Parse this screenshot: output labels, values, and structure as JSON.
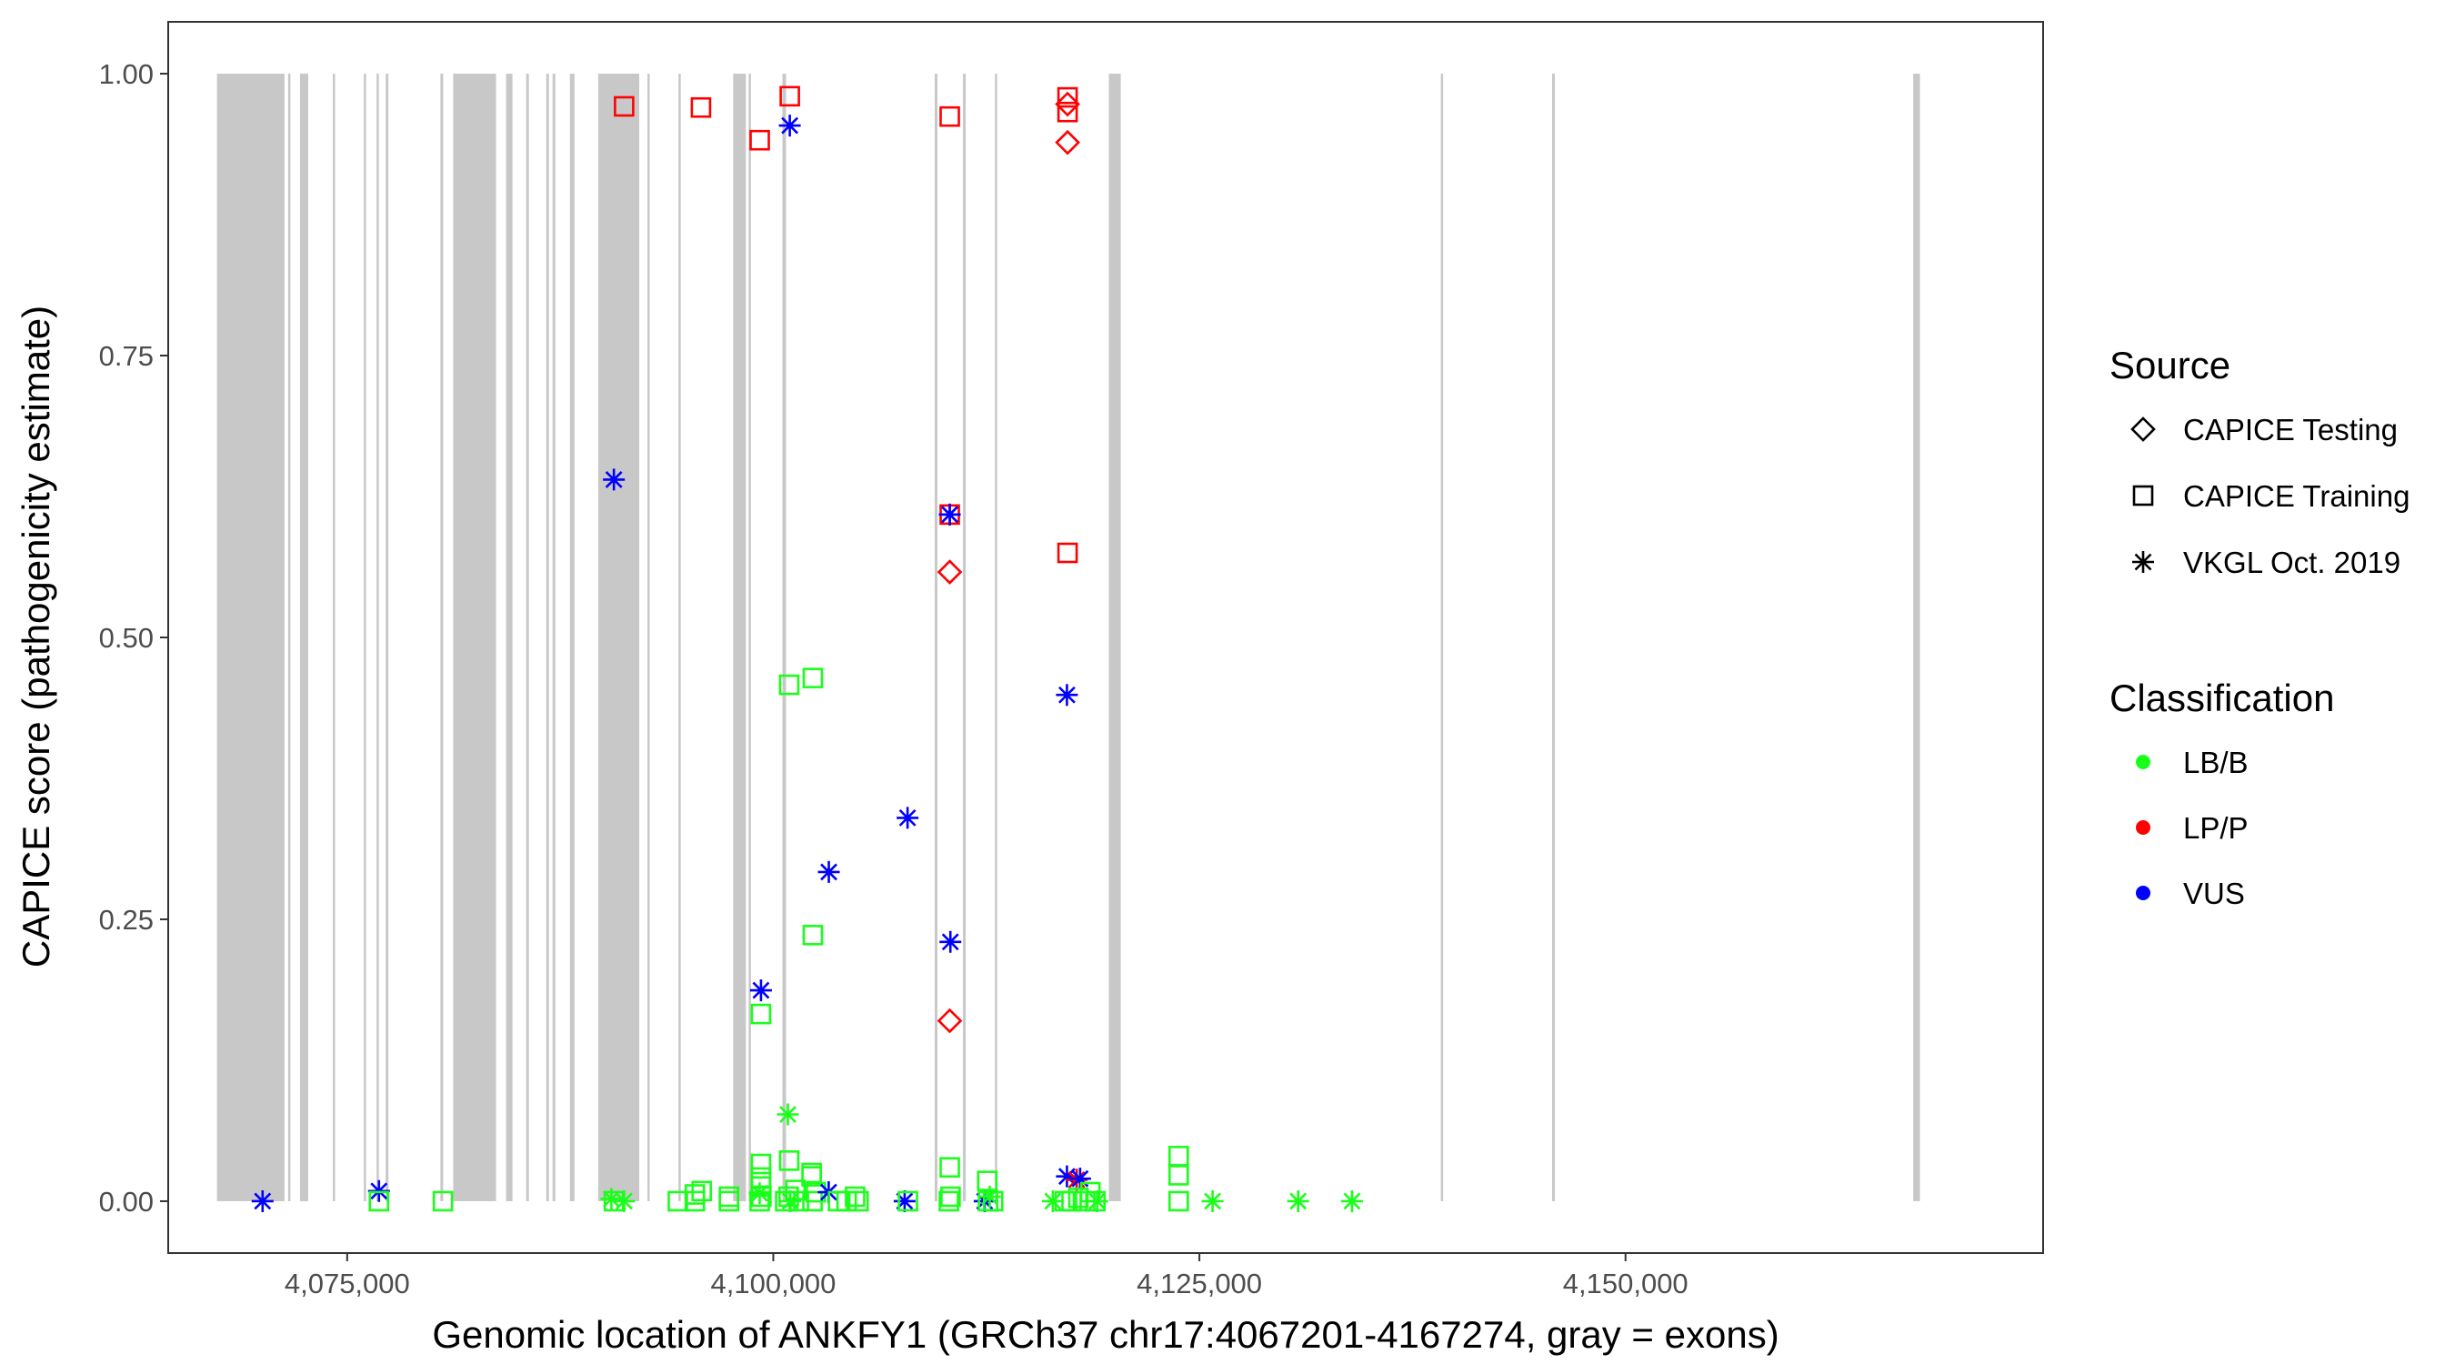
{
  "chart_data": {
    "type": "scatter",
    "xlabel": "Genomic location of ANKFY1 (GRCh37 chr17:4067201-4167274, gray = exons)",
    "ylabel": "CAPICE score (pathogenicity estimate)",
    "xlim": [
      4064500,
      4174500
    ],
    "ylim": [
      -0.046,
      1.046
    ],
    "x_ticks": [
      4075000,
      4100000,
      4125000,
      4150000
    ],
    "x_tick_labels": [
      "4,075,000",
      "4,100,000",
      "4,125,000",
      "4,150,000"
    ],
    "y_ticks": [
      0,
      0.25,
      0.5,
      0.75,
      1.0
    ],
    "y_tick_labels": [
      "0.00",
      "0.25",
      "0.50",
      "0.75",
      "1.00"
    ],
    "grid": false,
    "legend_placement": "right",
    "legend": {
      "source_title": "Source",
      "sources": [
        {
          "key": "testing",
          "label": "CAPICE Testing",
          "shape": "diamond"
        },
        {
          "key": "training",
          "label": "CAPICE Training",
          "shape": "square"
        },
        {
          "key": "vkgl",
          "label": "VKGL Oct. 2019",
          "shape": "asterisk"
        }
      ],
      "class_title": "Classification",
      "classes": [
        {
          "key": "LB/B",
          "label": "LB/B",
          "color": "#1aff1a"
        },
        {
          "key": "LP/P",
          "label": "LP/P",
          "color": "#ff0000"
        },
        {
          "key": "VUS",
          "label": "VUS",
          "color": "#0000ff"
        }
      ]
    },
    "exon_color": "#c8c8c8",
    "exons": [
      [
        4067363,
        4071322
      ],
      [
        4071536,
        4071590
      ],
      [
        4072232,
        4072713
      ],
      [
        4074157,
        4074264
      ],
      [
        4075976,
        4076083
      ],
      [
        4076725,
        4076832
      ],
      [
        4077260,
        4077421
      ],
      [
        4080471,
        4080632
      ],
      [
        4081220,
        4083735
      ],
      [
        4084323,
        4084698
      ],
      [
        4085500,
        4085661
      ],
      [
        4086677,
        4086838
      ],
      [
        4087052,
        4087212
      ],
      [
        4088068,
        4088336
      ],
      [
        4089727,
        4092135
      ],
      [
        4092616,
        4092723
      ],
      [
        4094436,
        4094543
      ],
      [
        4097646,
        4098395
      ],
      [
        4098555,
        4098662
      ],
      [
        4100535,
        4100749
      ],
      [
        4109470,
        4109631
      ],
      [
        4111129,
        4111289
      ],
      [
        4113001,
        4113108
      ],
      [
        4119690,
        4120385
      ],
      [
        4139165,
        4139272
      ],
      [
        4145693,
        4145853
      ],
      [
        4166880,
        4167274
      ]
    ],
    "points": [
      {
        "x": 4070037,
        "y": 0.0,
        "class": "VUS",
        "source": "vkgl"
      },
      {
        "x": 4076865,
        "y": 0.009,
        "class": "VUS",
        "source": "vkgl"
      },
      {
        "x": 4076865,
        "y": 0.0,
        "class": "LB/B",
        "source": "training"
      },
      {
        "x": 4080620,
        "y": 0.0,
        "class": "LB/B",
        "source": "training"
      },
      {
        "x": 4091247,
        "y": 0.971,
        "class": "LP/P",
        "source": "training"
      },
      {
        "x": 4095757,
        "y": 0.97,
        "class": "LP/P",
        "source": "training"
      },
      {
        "x": 4099203,
        "y": 0.941,
        "class": "LP/P",
        "source": "training"
      },
      {
        "x": 4100968,
        "y": 0.98,
        "class": "LP/P",
        "source": "training"
      },
      {
        "x": 4100968,
        "y": 0.954,
        "class": "VUS",
        "source": "vkgl"
      },
      {
        "x": 4110353,
        "y": 0.962,
        "class": "LP/P",
        "source": "training"
      },
      {
        "x": 4117265,
        "y": 0.979,
        "class": "LP/P",
        "source": "training"
      },
      {
        "x": 4117265,
        "y": 0.966,
        "class": "LP/P",
        "source": "training"
      },
      {
        "x": 4117265,
        "y": 0.973,
        "class": "LP/P",
        "source": "testing"
      },
      {
        "x": 4117265,
        "y": 0.939,
        "class": "LP/P",
        "source": "testing"
      },
      {
        "x": 4090648,
        "y": 0.64,
        "class": "VUS",
        "source": "vkgl"
      },
      {
        "x": 4110353,
        "y": 0.609,
        "class": "LP/P",
        "source": "training"
      },
      {
        "x": 4110353,
        "y": 0.609,
        "class": "LP/P",
        "source": "vkgl"
      },
      {
        "x": 4110353,
        "y": 0.609,
        "class": "VUS",
        "source": "vkgl"
      },
      {
        "x": 4110353,
        "y": 0.558,
        "class": "LP/P",
        "source": "testing"
      },
      {
        "x": 4117265,
        "y": 0.575,
        "class": "LP/P",
        "source": "training"
      },
      {
        "x": 4100930,
        "y": 0.458,
        "class": "LB/B",
        "source": "training"
      },
      {
        "x": 4102322,
        "y": 0.464,
        "class": "LB/B",
        "source": "training"
      },
      {
        "x": 4117228,
        "y": 0.449,
        "class": "VUS",
        "source": "vkgl"
      },
      {
        "x": 4107877,
        "y": 0.34,
        "class": "VUS",
        "source": "vkgl"
      },
      {
        "x": 4103258,
        "y": 0.292,
        "class": "VUS",
        "source": "vkgl"
      },
      {
        "x": 4102322,
        "y": 0.236,
        "class": "LB/B",
        "source": "training"
      },
      {
        "x": 4110390,
        "y": 0.23,
        "class": "VUS",
        "source": "vkgl"
      },
      {
        "x": 4110353,
        "y": 0.16,
        "class": "LP/P",
        "source": "testing"
      },
      {
        "x": 4099278,
        "y": 0.187,
        "class": "VUS",
        "source": "vkgl"
      },
      {
        "x": 4099278,
        "y": 0.166,
        "class": "LB/B",
        "source": "training"
      },
      {
        "x": 4100856,
        "y": 0.077,
        "class": "LB/B",
        "source": "vkgl"
      },
      {
        "x": 4099278,
        "y": 0.033,
        "class": "LB/B",
        "source": "training"
      },
      {
        "x": 4099278,
        "y": 0.021,
        "class": "LB/B",
        "source": "training"
      },
      {
        "x": 4099278,
        "y": 0.013,
        "class": "LB/B",
        "source": "training"
      },
      {
        "x": 4100930,
        "y": 0.036,
        "class": "LB/B",
        "source": "training"
      },
      {
        "x": 4102250,
        "y": 0.025,
        "class": "LB/B",
        "source": "training"
      },
      {
        "x": 4102250,
        "y": 0.022,
        "class": "LB/B",
        "source": "training"
      },
      {
        "x": 4110353,
        "y": 0.03,
        "class": "LB/B",
        "source": "training"
      },
      {
        "x": 4112555,
        "y": 0.018,
        "class": "LB/B",
        "source": "training"
      },
      {
        "x": 4117228,
        "y": 0.022,
        "class": "VUS",
        "source": "vkgl"
      },
      {
        "x": 4117800,
        "y": 0.019,
        "class": "LP/P",
        "source": "vkgl"
      },
      {
        "x": 4118000,
        "y": 0.02,
        "class": "VUS",
        "source": "vkgl"
      },
      {
        "x": 4123782,
        "y": 0.04,
        "class": "LB/B",
        "source": "training"
      },
      {
        "x": 4123782,
        "y": 0.023,
        "class": "LB/B",
        "source": "training"
      },
      {
        "x": 4123782,
        "y": 0.0,
        "class": "LB/B",
        "source": "training"
      },
      {
        "x": 4090500,
        "y": 0.002,
        "class": "LB/B",
        "source": "vkgl"
      },
      {
        "x": 4091250,
        "y": 0.0,
        "class": "LB/B",
        "source": "vkgl"
      },
      {
        "x": 4090650,
        "y": 0.0,
        "class": "LB/B",
        "source": "training"
      },
      {
        "x": 4094400,
        "y": 0.0,
        "class": "LB/B",
        "source": "training"
      },
      {
        "x": 4095400,
        "y": 0.006,
        "class": "LB/B",
        "source": "training"
      },
      {
        "x": 4095800,
        "y": 0.009,
        "class": "LB/B",
        "source": "training"
      },
      {
        "x": 4095400,
        "y": 0.0,
        "class": "LB/B",
        "source": "training"
      },
      {
        "x": 4097400,
        "y": 0.0,
        "class": "LB/B",
        "source": "training"
      },
      {
        "x": 4097400,
        "y": 0.004,
        "class": "LB/B",
        "source": "training"
      },
      {
        "x": 4099200,
        "y": 0.0,
        "class": "LB/B",
        "source": "training"
      },
      {
        "x": 4099300,
        "y": 0.004,
        "class": "LB/B",
        "source": "training"
      },
      {
        "x": 4099200,
        "y": 0.007,
        "class": "LB/B",
        "source": "vkgl"
      },
      {
        "x": 4100700,
        "y": 0.0,
        "class": "LB/B",
        "source": "training"
      },
      {
        "x": 4100900,
        "y": 0.004,
        "class": "LB/B",
        "source": "training"
      },
      {
        "x": 4101000,
        "y": 0.0,
        "class": "LB/B",
        "source": "vkgl"
      },
      {
        "x": 4101300,
        "y": 0.01,
        "class": "LB/B",
        "source": "training"
      },
      {
        "x": 4101500,
        "y": 0.0,
        "class": "LB/B",
        "source": "training"
      },
      {
        "x": 4102300,
        "y": 0.0,
        "class": "LB/B",
        "source": "training"
      },
      {
        "x": 4102500,
        "y": 0.008,
        "class": "LB/B",
        "source": "training"
      },
      {
        "x": 4103250,
        "y": 0.008,
        "class": "VUS",
        "source": "vkgl"
      },
      {
        "x": 4103800,
        "y": 0.0,
        "class": "LB/B",
        "source": "training"
      },
      {
        "x": 4104300,
        "y": 0.0,
        "class": "LB/B",
        "source": "training"
      },
      {
        "x": 4104800,
        "y": 0.004,
        "class": "LB/B",
        "source": "training"
      },
      {
        "x": 4105000,
        "y": 0.0,
        "class": "LB/B",
        "source": "training"
      },
      {
        "x": 4107705,
        "y": 0.0,
        "class": "VUS",
        "source": "vkgl"
      },
      {
        "x": 4107900,
        "y": 0.0,
        "class": "LB/B",
        "source": "training"
      },
      {
        "x": 4110300,
        "y": 0.0,
        "class": "LB/B",
        "source": "training"
      },
      {
        "x": 4110400,
        "y": 0.004,
        "class": "LB/B",
        "source": "training"
      },
      {
        "x": 4112400,
        "y": 0.0,
        "class": "VUS",
        "source": "vkgl"
      },
      {
        "x": 4112600,
        "y": 0.0,
        "class": "LB/B",
        "source": "training"
      },
      {
        "x": 4112700,
        "y": 0.004,
        "class": "LB/B",
        "source": "vkgl"
      },
      {
        "x": 4112900,
        "y": 0.0,
        "class": "LB/B",
        "source": "training"
      },
      {
        "x": 4116400,
        "y": 0.0,
        "class": "LB/B",
        "source": "vkgl"
      },
      {
        "x": 4117100,
        "y": 0.0,
        "class": "LB/B",
        "source": "training"
      },
      {
        "x": 4117500,
        "y": 0.0,
        "class": "LB/B",
        "source": "training"
      },
      {
        "x": 4117900,
        "y": 0.003,
        "class": "LB/B",
        "source": "training"
      },
      {
        "x": 4118300,
        "y": 0.0,
        "class": "LB/B",
        "source": "training"
      },
      {
        "x": 4118600,
        "y": 0.008,
        "class": "LB/B",
        "source": "training"
      },
      {
        "x": 4118900,
        "y": 0.0,
        "class": "LB/B",
        "source": "training"
      },
      {
        "x": 4119000,
        "y": 0.0,
        "class": "LB/B",
        "source": "vkgl"
      },
      {
        "x": 4125773,
        "y": 0.0,
        "class": "LB/B",
        "source": "vkgl"
      },
      {
        "x": 4130793,
        "y": 0.0,
        "class": "LB/B",
        "source": "vkgl"
      },
      {
        "x": 4133954,
        "y": 0.0,
        "class": "LB/B",
        "source": "vkgl"
      }
    ]
  }
}
